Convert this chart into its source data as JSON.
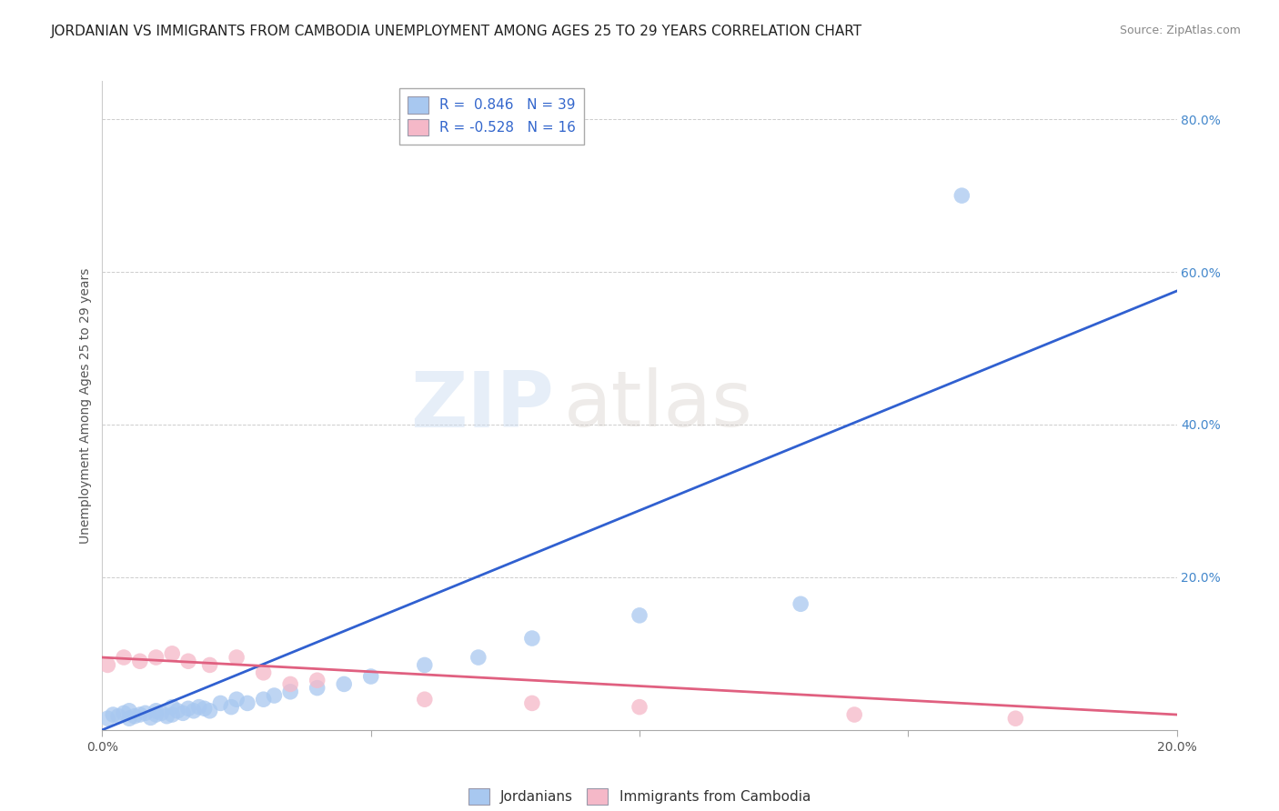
{
  "title": "JORDANIAN VS IMMIGRANTS FROM CAMBODIA UNEMPLOYMENT AMONG AGES 25 TO 29 YEARS CORRELATION CHART",
  "source": "Source: ZipAtlas.com",
  "ylabel": "Unemployment Among Ages 25 to 29 years",
  "xmin": 0.0,
  "xmax": 0.2,
  "ymin": 0.0,
  "ymax": 0.85,
  "x_tick_values": [
    0.0,
    0.05,
    0.1,
    0.15,
    0.2
  ],
  "x_tick_labels": [
    "0.0%",
    "",
    "",
    "",
    "20.0%"
  ],
  "y_tick_values": [
    0.2,
    0.4,
    0.6,
    0.8
  ],
  "y_tick_labels": [
    "20.0%",
    "40.0%",
    "60.0%",
    "80.0%"
  ],
  "jordanians_R": 0.846,
  "jordanians_N": 39,
  "cambodia_R": -0.528,
  "cambodia_N": 16,
  "scatter_blue_color": "#a8c8f0",
  "scatter_pink_color": "#f5b8c8",
  "line_blue_color": "#3060d0",
  "line_pink_color": "#e06080",
  "legend_label1": "Jordanians",
  "legend_label2": "Immigrants from Cambodia",
  "watermark_zip": "ZIP",
  "watermark_atlas": "atlas",
  "jordanians_x": [
    0.001,
    0.002,
    0.003,
    0.004,
    0.005,
    0.005,
    0.006,
    0.007,
    0.008,
    0.009,
    0.01,
    0.01,
    0.011,
    0.012,
    0.013,
    0.013,
    0.014,
    0.015,
    0.016,
    0.017,
    0.018,
    0.019,
    0.02,
    0.022,
    0.024,
    0.025,
    0.027,
    0.03,
    0.032,
    0.035,
    0.04,
    0.045,
    0.05,
    0.06,
    0.07,
    0.08,
    0.1,
    0.13,
    0.16
  ],
  "jordanians_y": [
    0.015,
    0.02,
    0.018,
    0.022,
    0.015,
    0.025,
    0.018,
    0.02,
    0.022,
    0.016,
    0.02,
    0.025,
    0.022,
    0.018,
    0.02,
    0.03,
    0.025,
    0.022,
    0.028,
    0.025,
    0.03,
    0.028,
    0.025,
    0.035,
    0.03,
    0.04,
    0.035,
    0.04,
    0.045,
    0.05,
    0.055,
    0.06,
    0.07,
    0.085,
    0.095,
    0.12,
    0.15,
    0.165,
    0.7
  ],
  "cambodia_x": [
    0.001,
    0.004,
    0.007,
    0.01,
    0.013,
    0.016,
    0.02,
    0.025,
    0.03,
    0.035,
    0.04,
    0.06,
    0.08,
    0.1,
    0.14,
    0.17
  ],
  "cambodia_y": [
    0.085,
    0.095,
    0.09,
    0.095,
    0.1,
    0.09,
    0.085,
    0.095,
    0.075,
    0.06,
    0.065,
    0.04,
    0.035,
    0.03,
    0.02,
    0.015
  ],
  "blue_line_x0": 0.0,
  "blue_line_y0": 0.0,
  "blue_line_x1": 0.2,
  "blue_line_y1": 0.575,
  "pink_line_x0": 0.0,
  "pink_line_y0": 0.095,
  "pink_line_x1": 0.2,
  "pink_line_y1": 0.02,
  "background_color": "#ffffff",
  "grid_color": "#c8c8c8",
  "title_fontsize": 11,
  "axis_label_fontsize": 10,
  "tick_fontsize": 10,
  "legend_fontsize": 11
}
